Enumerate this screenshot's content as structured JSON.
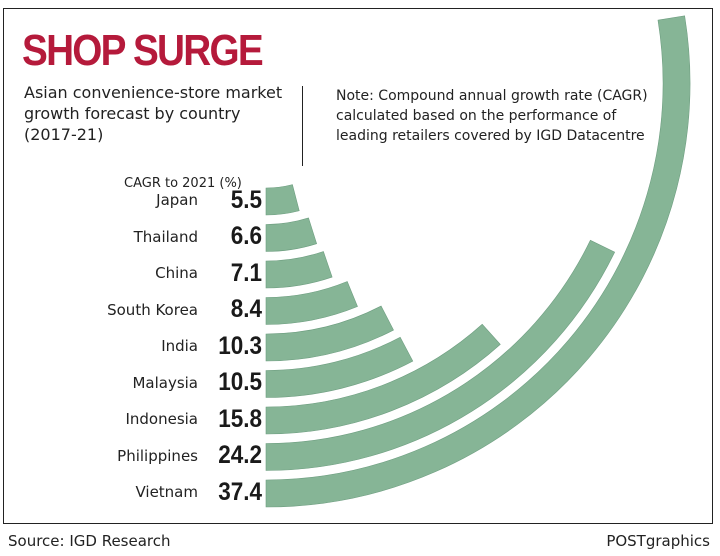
{
  "title": "SHOP SURGE",
  "subtitle": "Asian convenience-store market growth forecast by country (2017-21)",
  "note": "Note: Compound annual growth rate (CAGR) calculated based on the performance of leading retailers covered by IGD Datacentre",
  "source": "Source: IGD Research",
  "credit": "POSTgraphics",
  "colors": {
    "title": "#b51a3b",
    "bar": "#86b596"
  },
  "chart_data": {
    "type": "bar",
    "subtype": "radial",
    "value_label": "CAGR to 2021 (%)",
    "categories": [
      "Japan",
      "Thailand",
      "China",
      "South Korea",
      "India",
      "Malaysia",
      "Indonesia",
      "Philippines",
      "Vietnam"
    ],
    "values": [
      5.5,
      6.6,
      7.1,
      8.4,
      10.3,
      10.5,
      15.8,
      24.2,
      37.4
    ],
    "value_labels": [
      "5.5",
      "6.6",
      "7.1",
      "8.4",
      "10.3",
      "10.5",
      "15.8",
      "24.2",
      "37.4"
    ]
  }
}
